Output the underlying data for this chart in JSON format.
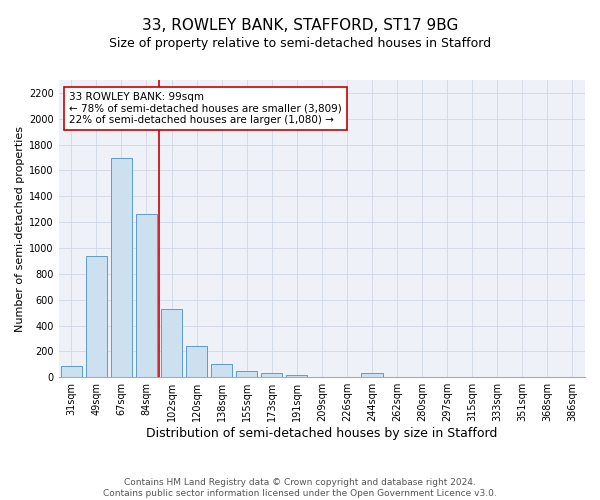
{
  "title": "33, ROWLEY BANK, STAFFORD, ST17 9BG",
  "subtitle": "Size of property relative to semi-detached houses in Stafford",
  "xlabel": "Distribution of semi-detached houses by size in Stafford",
  "ylabel": "Number of semi-detached properties",
  "footnote": "Contains HM Land Registry data © Crown copyright and database right 2024.\nContains public sector information licensed under the Open Government Licence v3.0.",
  "categories": [
    "31sqm",
    "49sqm",
    "67sqm",
    "84sqm",
    "102sqm",
    "120sqm",
    "138sqm",
    "155sqm",
    "173sqm",
    "191sqm",
    "209sqm",
    "226sqm",
    "244sqm",
    "262sqm",
    "280sqm",
    "297sqm",
    "315sqm",
    "333sqm",
    "351sqm",
    "368sqm",
    "386sqm"
  ],
  "values": [
    90,
    940,
    1700,
    1260,
    530,
    240,
    100,
    50,
    30,
    20,
    0,
    0,
    30,
    0,
    0,
    0,
    0,
    0,
    0,
    0,
    0
  ],
  "bar_color": "#cce0f0",
  "bar_edge_color": "#5b9bd5",
  "vline_x_index": 4,
  "vline_color": "#cc0000",
  "annotation_text": "33 ROWLEY BANK: 99sqm\n← 78% of semi-detached houses are smaller (3,809)\n22% of semi-detached houses are larger (1,080) →",
  "annotation_box_edge_color": "#cc0000",
  "ylim": [
    0,
    2300
  ],
  "yticks": [
    0,
    200,
    400,
    600,
    800,
    1000,
    1200,
    1400,
    1600,
    1800,
    2000,
    2200
  ],
  "grid_color": "#d0d8e8",
  "background_color": "#eef2f8",
  "title_fontsize": 11,
  "subtitle_fontsize": 9,
  "xlabel_fontsize": 9,
  "ylabel_fontsize": 8,
  "tick_fontsize": 7,
  "annotation_fontsize": 7.5,
  "footnote_fontsize": 6.5
}
